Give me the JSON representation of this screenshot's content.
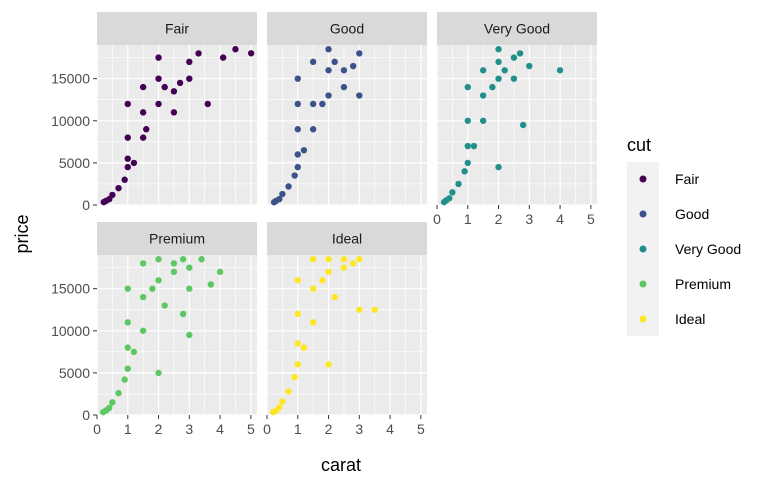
{
  "chart_data": {
    "type": "scatter",
    "facet_by": "cut",
    "xlabel": "carat",
    "ylabel": "price",
    "xlim": [
      0,
      5.2
    ],
    "ylim": [
      0,
      19000
    ],
    "x_ticks": [
      0,
      1,
      2,
      3,
      4,
      5
    ],
    "x_tick_labels": [
      "0",
      "1",
      "2",
      "3",
      "4",
      "5"
    ],
    "y_ticks": [
      0,
      5000,
      10000,
      15000
    ],
    "y_tick_labels": [
      "0",
      "5000",
      "10000",
      "15000"
    ],
    "grid": true,
    "legend": {
      "title": "cut",
      "position": "right",
      "entries": [
        "Fair",
        "Good",
        "Very Good",
        "Premium",
        "Ideal"
      ]
    },
    "colors": {
      "Fair": "#440154",
      "Good": "#3B528B",
      "Very Good": "#21908C",
      "Premium": "#5DC863",
      "Ideal": "#FDE725",
      "panel_bg": "#EBEBEB",
      "strip_bg": "#D9D9D9",
      "grid_major": "#FFFFFF"
    },
    "series": [
      {
        "name": "Fair",
        "points": [
          [
            0.22,
            340
          ],
          [
            0.3,
            500
          ],
          [
            0.4,
            700
          ],
          [
            0.5,
            1200
          ],
          [
            0.7,
            2000
          ],
          [
            0.9,
            3000
          ],
          [
            1.0,
            4500
          ],
          [
            1.0,
            5500
          ],
          [
            1.0,
            8000
          ],
          [
            1.0,
            12000
          ],
          [
            1.2,
            5000
          ],
          [
            1.5,
            8000
          ],
          [
            1.5,
            11000
          ],
          [
            1.5,
            14000
          ],
          [
            1.6,
            9000
          ],
          [
            2.0,
            12000
          ],
          [
            2.0,
            15000
          ],
          [
            2.0,
            17500
          ],
          [
            2.2,
            14000
          ],
          [
            2.5,
            11000
          ],
          [
            2.5,
            13500
          ],
          [
            2.7,
            14500
          ],
          [
            3.0,
            15000
          ],
          [
            3.0,
            17000
          ],
          [
            3.3,
            18000
          ],
          [
            3.6,
            12000
          ],
          [
            4.1,
            17500
          ],
          [
            4.5,
            18500
          ],
          [
            5.01,
            18018
          ]
        ]
      },
      {
        "name": "Good",
        "points": [
          [
            0.23,
            330
          ],
          [
            0.3,
            500
          ],
          [
            0.4,
            700
          ],
          [
            0.5,
            1300
          ],
          [
            0.7,
            2200
          ],
          [
            0.9,
            3500
          ],
          [
            1.0,
            4500
          ],
          [
            1.0,
            6000
          ],
          [
            1.0,
            9000
          ],
          [
            1.0,
            12000
          ],
          [
            1.0,
            15000
          ],
          [
            1.2,
            6500
          ],
          [
            1.5,
            9000
          ],
          [
            1.5,
            12000
          ],
          [
            1.5,
            17000
          ],
          [
            1.8,
            12000
          ],
          [
            2.0,
            13000
          ],
          [
            2.0,
            16000
          ],
          [
            2.0,
            18500
          ],
          [
            2.2,
            17000
          ],
          [
            2.5,
            14000
          ],
          [
            2.5,
            16000
          ],
          [
            2.8,
            16500
          ],
          [
            3.0,
            18000
          ],
          [
            3.0,
            13000
          ]
        ]
      },
      {
        "name": "Very Good",
        "points": [
          [
            0.23,
            340
          ],
          [
            0.3,
            550
          ],
          [
            0.4,
            800
          ],
          [
            0.5,
            1500
          ],
          [
            0.7,
            2500
          ],
          [
            0.9,
            4000
          ],
          [
            1.0,
            5000
          ],
          [
            1.0,
            7000
          ],
          [
            1.0,
            10000
          ],
          [
            1.0,
            14000
          ],
          [
            1.2,
            7000
          ],
          [
            1.5,
            10000
          ],
          [
            1.5,
            13000
          ],
          [
            1.5,
            16000
          ],
          [
            1.8,
            14000
          ],
          [
            2.0,
            15000
          ],
          [
            2.0,
            17000
          ],
          [
            2.0,
            18500
          ],
          [
            2.2,
            16000
          ],
          [
            2.5,
            15000
          ],
          [
            2.5,
            17500
          ],
          [
            2.7,
            18000
          ],
          [
            2.0,
            4500
          ],
          [
            3.0,
            16500
          ],
          [
            2.8,
            9500
          ],
          [
            4.0,
            16000
          ]
        ]
      },
      {
        "name": "Premium",
        "points": [
          [
            0.2,
            340
          ],
          [
            0.3,
            550
          ],
          [
            0.4,
            850
          ],
          [
            0.5,
            1500
          ],
          [
            0.7,
            2600
          ],
          [
            0.9,
            4200
          ],
          [
            1.0,
            5500
          ],
          [
            1.0,
            8000
          ],
          [
            1.0,
            11000
          ],
          [
            1.0,
            15000
          ],
          [
            1.2,
            7500
          ],
          [
            1.5,
            10000
          ],
          [
            1.5,
            14000
          ],
          [
            1.5,
            18000
          ],
          [
            1.8,
            15000
          ],
          [
            2.0,
            16000
          ],
          [
            2.0,
            18500
          ],
          [
            2.2,
            13000
          ],
          [
            2.5,
            17000
          ],
          [
            2.5,
            18000
          ],
          [
            2.8,
            18500
          ],
          [
            3.0,
            17500
          ],
          [
            3.0,
            15000
          ],
          [
            3.4,
            18500
          ],
          [
            3.7,
            15500
          ],
          [
            4.0,
            17000
          ],
          [
            2.8,
            12000
          ],
          [
            3.0,
            9500
          ],
          [
            2.0,
            5000
          ]
        ]
      },
      {
        "name": "Ideal",
        "points": [
          [
            0.2,
            330
          ],
          [
            0.3,
            550
          ],
          [
            0.4,
            900
          ],
          [
            0.5,
            1600
          ],
          [
            0.7,
            2800
          ],
          [
            0.9,
            4500
          ],
          [
            1.0,
            6000
          ],
          [
            1.0,
            8500
          ],
          [
            1.0,
            12000
          ],
          [
            1.0,
            16000
          ],
          [
            1.2,
            8000
          ],
          [
            1.5,
            11000
          ],
          [
            1.5,
            15000
          ],
          [
            1.5,
            18500
          ],
          [
            1.8,
            16000
          ],
          [
            2.0,
            17000
          ],
          [
            2.0,
            18500
          ],
          [
            2.2,
            14000
          ],
          [
            2.5,
            17500
          ],
          [
            2.5,
            18500
          ],
          [
            2.8,
            18000
          ],
          [
            3.0,
            18500
          ],
          [
            3.0,
            12500
          ],
          [
            3.5,
            12500
          ],
          [
            2.0,
            6000
          ]
        ]
      }
    ]
  }
}
